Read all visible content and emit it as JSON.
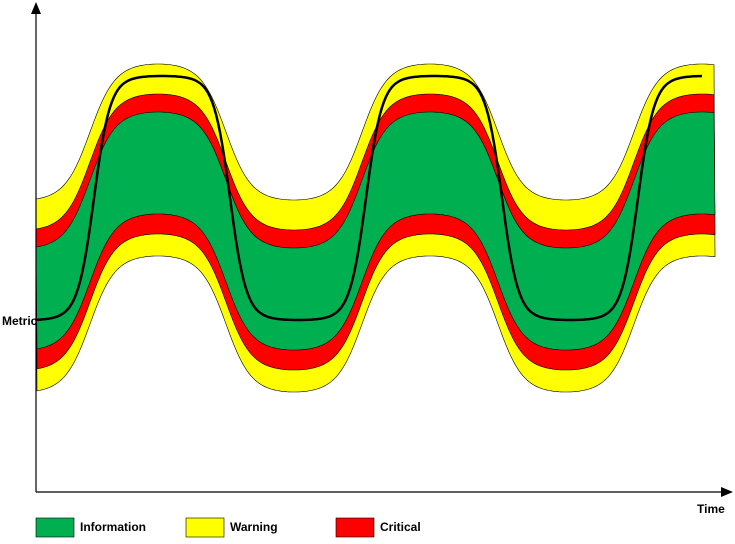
{
  "axes": {
    "y_label": "Metric",
    "x_label": "Time"
  },
  "legend": [
    {
      "label": "Information"
    },
    {
      "label": "Warning"
    },
    {
      "label": "Critical"
    }
  ]
}
